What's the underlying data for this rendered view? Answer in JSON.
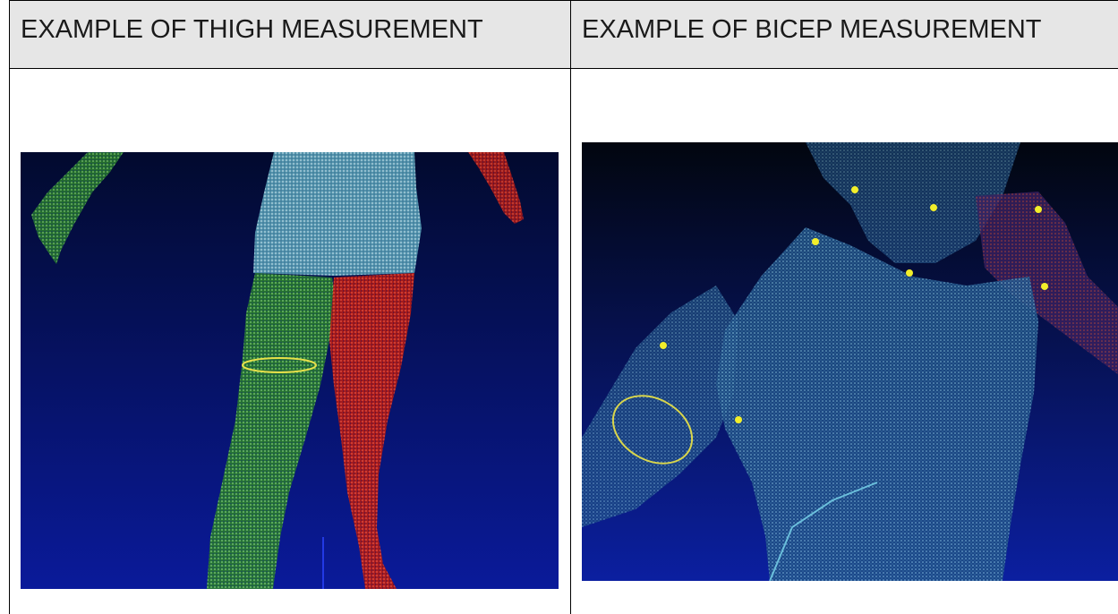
{
  "table": {
    "headers": [
      "EXAMPLE OF THIGH MEASUREMENT",
      "EXAMPLE OF BICEP MEASUREMENT"
    ]
  },
  "images": [
    {
      "subject": "thigh point cloud scan",
      "colors": {
        "background_top": "#020a2e",
        "background_bottom": "#0a1a9a",
        "torso": "#6fb8c8",
        "left_leg": "#3fae3a",
        "right_leg": "#d8261c",
        "ring": "#e6e04a"
      }
    },
    {
      "subject": "bicep point cloud scan",
      "colors": {
        "background_top": "#02060f",
        "background_bottom": "#0b1fa0",
        "body": "#3f93b8",
        "arm": "#c0403a",
        "ring": "#d9d64c",
        "markers": "#f2ee2a"
      }
    }
  ]
}
